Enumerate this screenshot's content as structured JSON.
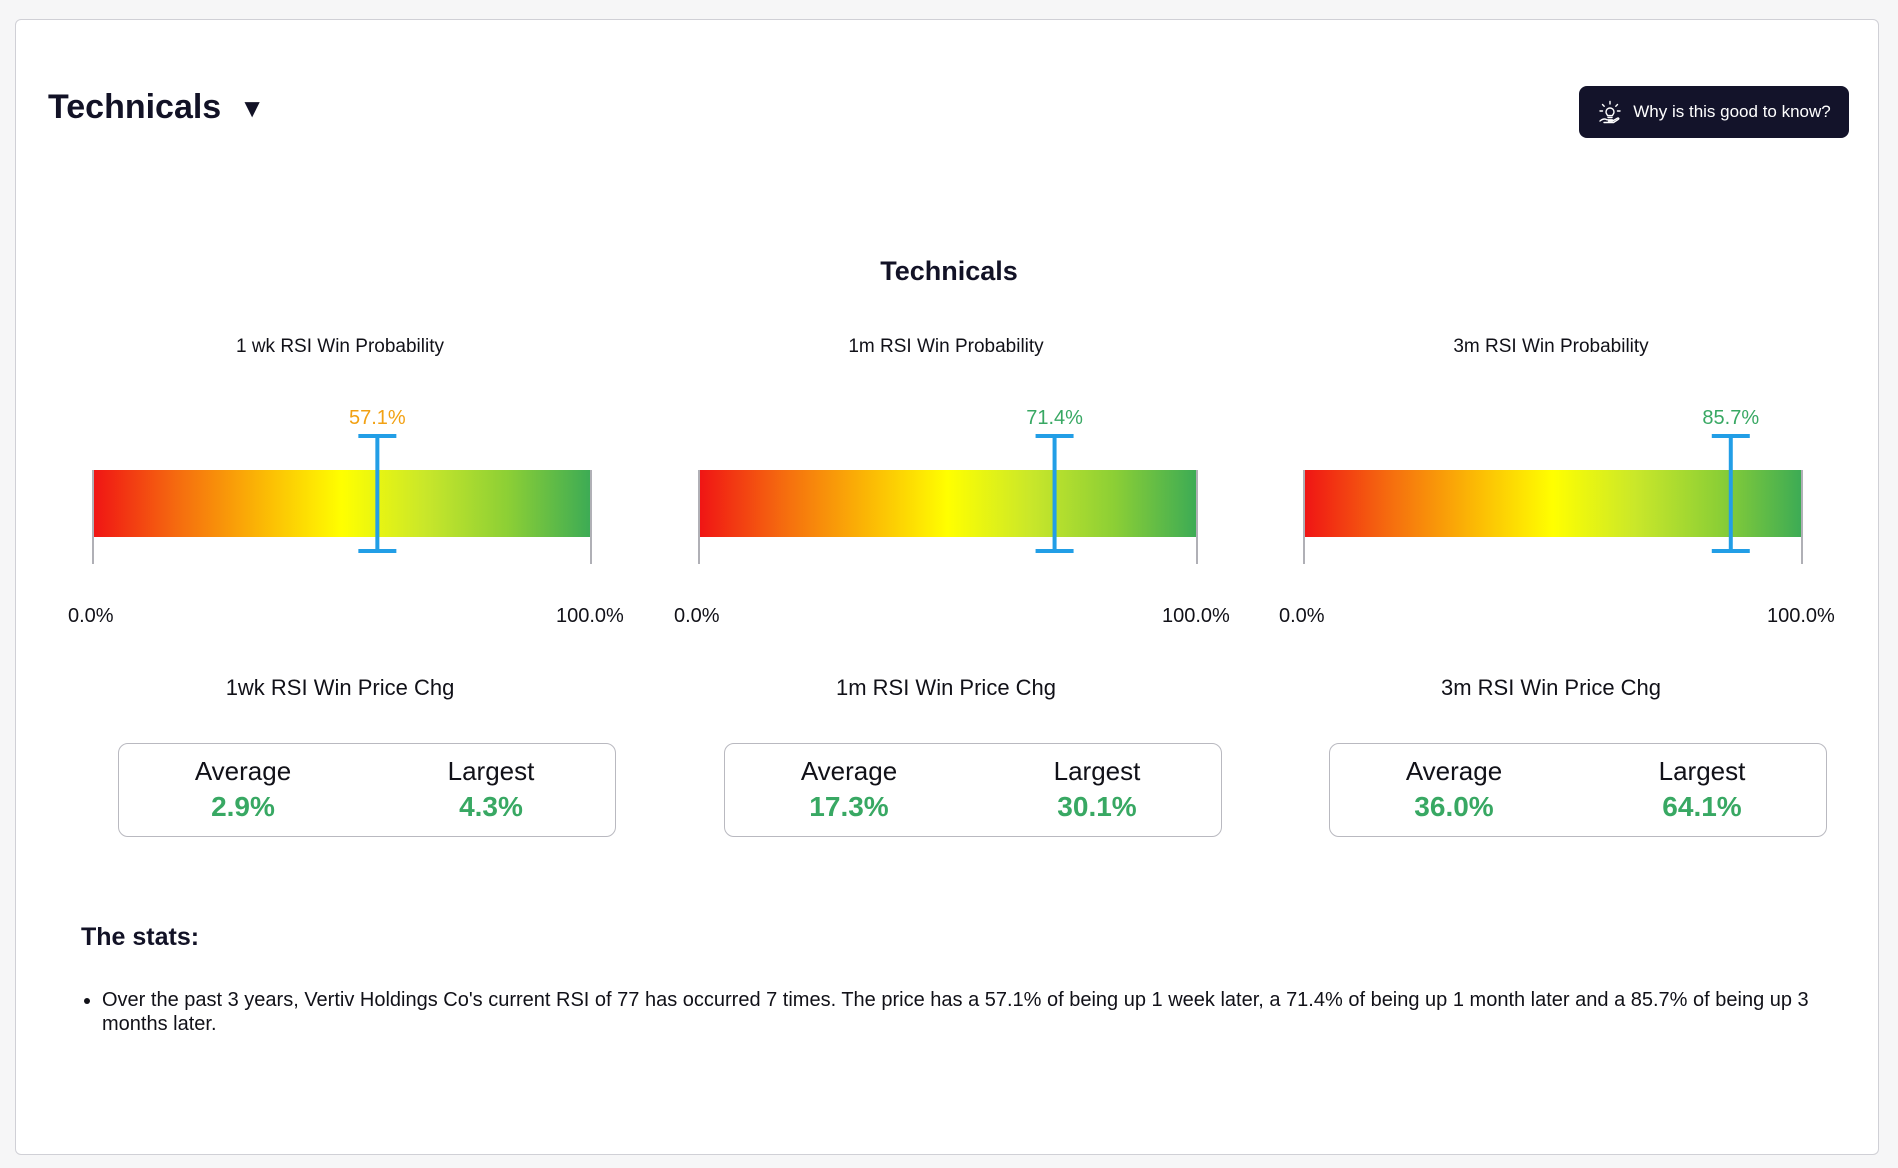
{
  "header": {
    "title": "Technicals",
    "caret": "▼"
  },
  "help_button": {
    "label": "Why is this good to know?",
    "icon": "lightbulb-icon"
  },
  "section_title": "Technicals",
  "colors": {
    "gradient": [
      "#f01414",
      "#f56a0f",
      "#fbb505",
      "#ffff00",
      "#c9e72a",
      "#8ccf35",
      "#3cab55"
    ],
    "marker": "#229ee6",
    "orange_value": "#f2a113",
    "green_value": "#38a863"
  },
  "gauges": [
    {
      "title": "1 wk RSI Win Probability",
      "value": 57.1,
      "value_label": "57.1%",
      "value_color": "#f2a113",
      "min_label": "0.0%",
      "max_label": "100.0%",
      "chg_title": "1wk RSI Win Price Chg",
      "average_label": "Average",
      "average_value": "2.9%",
      "largest_label": "Largest",
      "largest_value": "4.3%"
    },
    {
      "title": "1m RSI Win Probability",
      "value": 71.4,
      "value_label": "71.4%",
      "value_color": "#38a863",
      "min_label": "0.0%",
      "max_label": "100.0%",
      "chg_title": "1m RSI Win Price Chg",
      "average_label": "Average",
      "average_value": "17.3%",
      "largest_label": "Largest",
      "largest_value": "30.1%"
    },
    {
      "title": "3m RSI Win Probability",
      "value": 85.7,
      "value_label": "85.7%",
      "value_color": "#38a863",
      "min_label": "0.0%",
      "max_label": "100.0%",
      "chg_title": "3m RSI Win Price Chg",
      "average_label": "Average",
      "average_value": "36.0%",
      "largest_label": "Largest",
      "largest_value": "64.1%"
    }
  ],
  "stats": {
    "heading": "The stats:",
    "items": [
      "Over the past 3 years, Vertiv Holdings Co's current RSI of 77 has occurred 7 times. The price has a 57.1% of being up 1 week later, a 71.4% of being up 1 month later and a 85.7% of being up 3 months later."
    ]
  }
}
